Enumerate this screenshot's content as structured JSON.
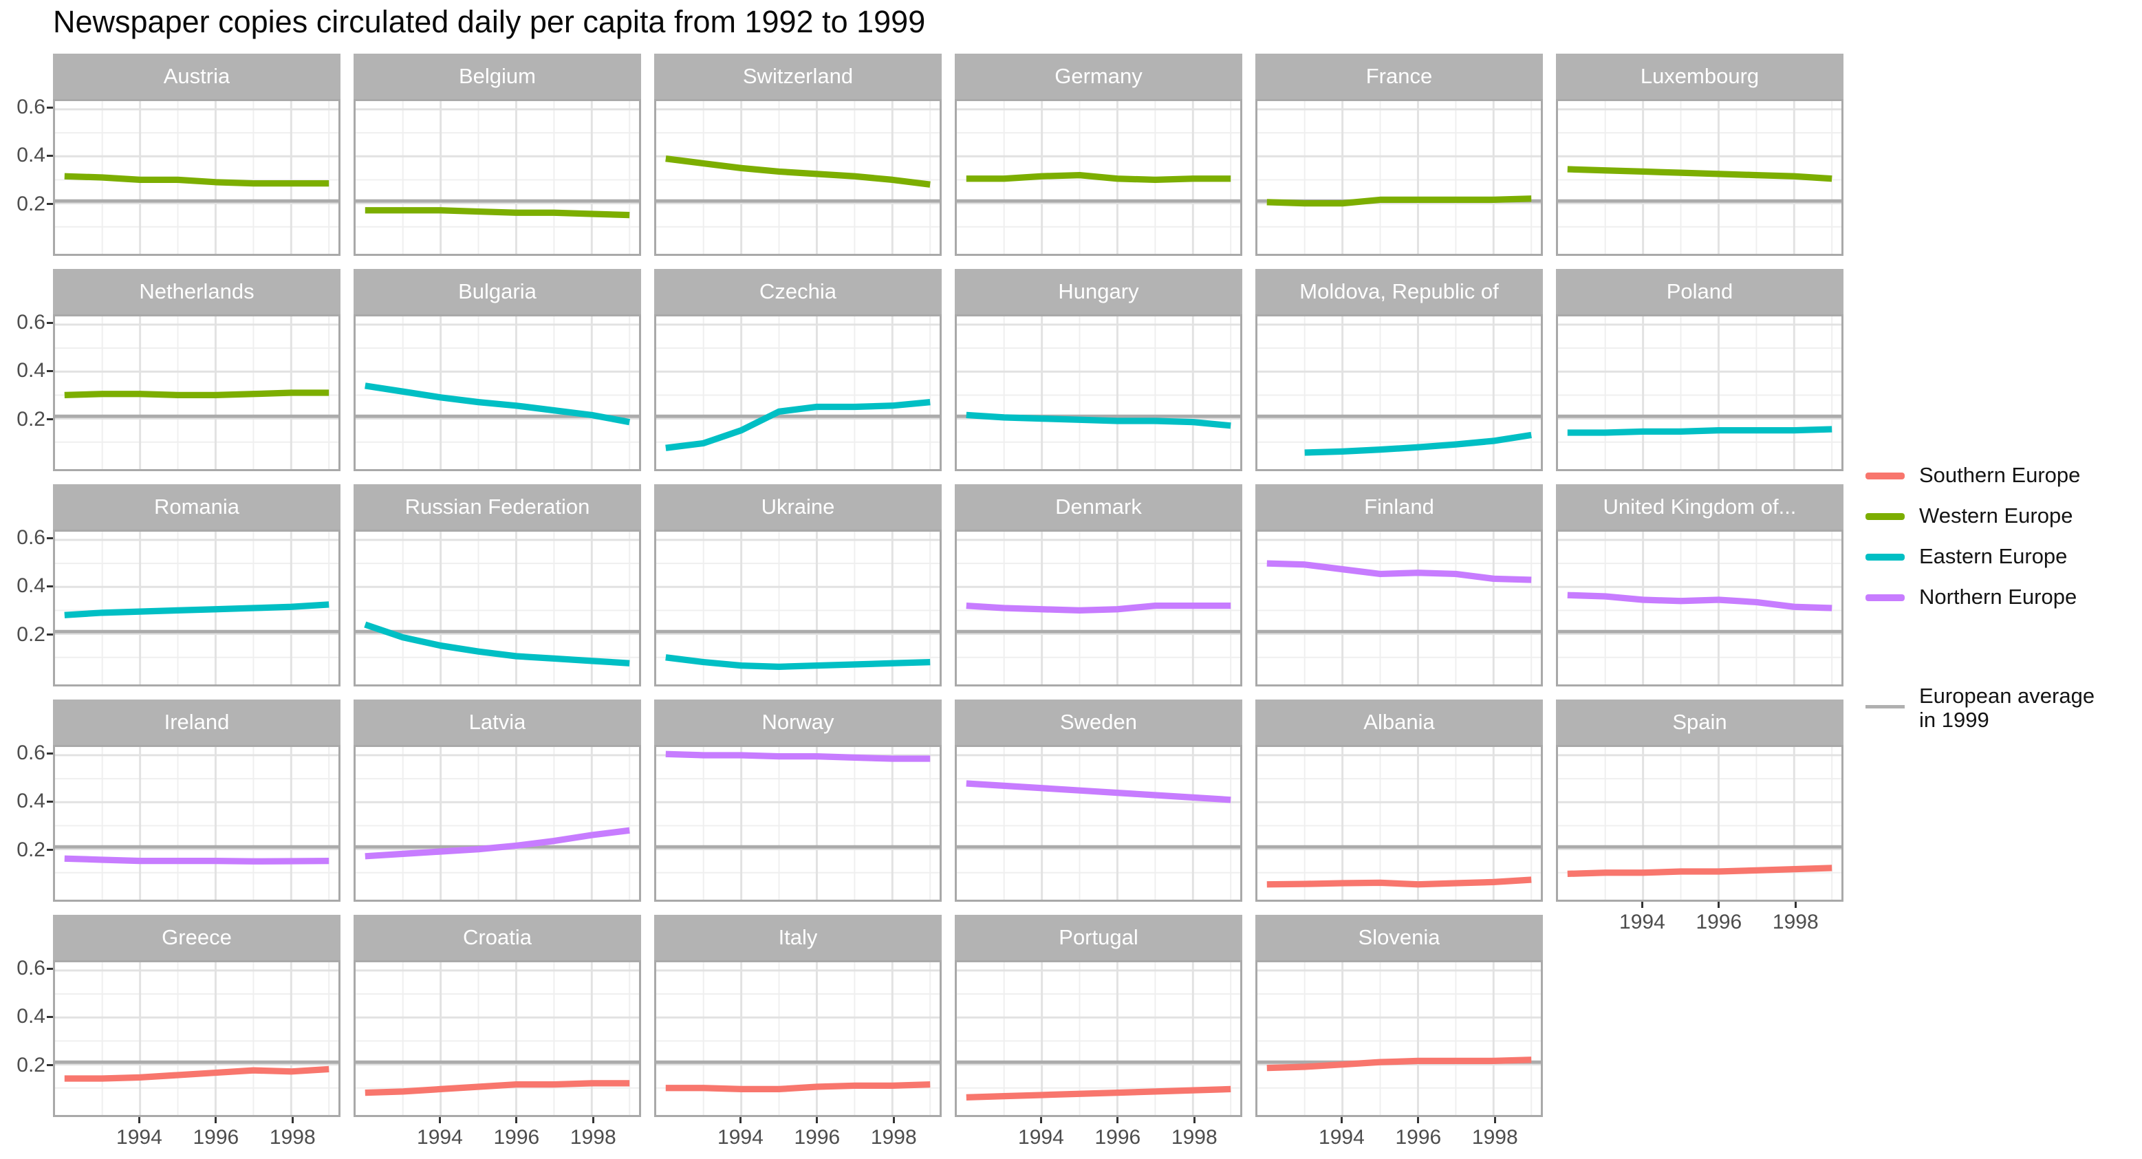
{
  "title": "Newspaper copies circulated daily per capita from 1992 to 1999",
  "legend": {
    "items": [
      {
        "label": "Southern Europe",
        "color": "#F8766D"
      },
      {
        "label": "Western Europe",
        "color": "#7CAE00"
      },
      {
        "label": "Eastern Europe",
        "color": "#00BFC4"
      },
      {
        "label": "Northern Europe",
        "color": "#C77CFF"
      }
    ],
    "reference_item": {
      "label_line1": "European average",
      "label_line2": " in 1999",
      "color": "#B0B0B0"
    }
  },
  "chart_data": {
    "type": "line",
    "title": "Newspaper copies circulated daily per capita from 1992 to 1999",
    "x": {
      "domain": [
        1992,
        1999
      ],
      "major_ticks": [
        1994,
        1996,
        1998
      ],
      "tick_labels": [
        "1994",
        "1996",
        "1998"
      ],
      "minor_ticks": [
        1993,
        1995,
        1997,
        1999
      ]
    },
    "y": {
      "domain": [
        -0.015,
        0.635
      ],
      "major_ticks": [
        0.2,
        0.4,
        0.6
      ],
      "tick_labels": [
        "0.2",
        "0.4",
        "0.6"
      ],
      "minor_ticks": [
        0.1,
        0.3,
        0.5
      ]
    },
    "grid": {
      "rows": 5,
      "cols": 6,
      "gridlines": "on",
      "legend_position": "right"
    },
    "reference_line": {
      "label": "European average in 1999",
      "value": 0.21,
      "color": "#ABABAB"
    },
    "regions": {
      "Southern Europe": "#F8766D",
      "Western Europe": "#7CAE00",
      "Eastern Europe": "#00BFC4",
      "Northern Europe": "#C77CFF"
    },
    "facets": [
      {
        "country": "Austria",
        "region": "Western Europe",
        "start_year": 1992,
        "values": [
          0.315,
          0.31,
          0.3,
          0.3,
          0.29,
          0.285,
          0.285,
          0.285
        ]
      },
      {
        "country": "Belgium",
        "region": "Western Europe",
        "start_year": 1992,
        "values": [
          0.17,
          0.17,
          0.17,
          0.165,
          0.16,
          0.16,
          0.155,
          0.15
        ]
      },
      {
        "country": "Switzerland",
        "region": "Western Europe",
        "start_year": 1992,
        "values": [
          0.39,
          0.37,
          0.35,
          0.335,
          0.325,
          0.315,
          0.3,
          0.28
        ]
      },
      {
        "country": "Germany",
        "region": "Western Europe",
        "start_year": 1992,
        "values": [
          0.305,
          0.305,
          0.315,
          0.32,
          0.305,
          0.3,
          0.305,
          0.305
        ]
      },
      {
        "country": "France",
        "region": "Western Europe",
        "start_year": 1992,
        "values": [
          0.205,
          0.2,
          0.2,
          0.215,
          0.215,
          0.215,
          0.215,
          0.22
        ]
      },
      {
        "country": "Luxembourg",
        "region": "Western Europe",
        "start_year": 1992,
        "values": [
          0.345,
          0.34,
          0.335,
          0.33,
          0.325,
          0.32,
          0.315,
          0.305
        ]
      },
      {
        "country": "Netherlands",
        "region": "Western Europe",
        "start_year": 1992,
        "values": [
          0.3,
          0.305,
          0.305,
          0.3,
          0.3,
          0.305,
          0.31,
          0.31
        ]
      },
      {
        "country": "Bulgaria",
        "region": "Eastern Europe",
        "start_year": 1992,
        "values": [
          0.34,
          0.315,
          0.29,
          0.27,
          0.255,
          0.235,
          0.215,
          0.185
        ]
      },
      {
        "country": "Czechia",
        "region": "Eastern Europe",
        "start_year": 1992,
        "values": [
          0.075,
          0.095,
          0.15,
          0.23,
          0.25,
          0.25,
          0.255,
          0.27
        ]
      },
      {
        "country": "Hungary",
        "region": "Eastern Europe",
        "start_year": 1992,
        "values": [
          0.215,
          0.205,
          0.2,
          0.195,
          0.19,
          0.19,
          0.185,
          0.17
        ]
      },
      {
        "country": "Moldova, Republic of",
        "region": "Eastern Europe",
        "start_year": 1993,
        "values": [
          0.055,
          0.06,
          0.068,
          0.078,
          0.09,
          0.105,
          0.13
        ]
      },
      {
        "country": "Poland",
        "region": "Eastern Europe",
        "start_year": 1992,
        "values": [
          0.14,
          0.14,
          0.145,
          0.145,
          0.15,
          0.15,
          0.15,
          0.155
        ]
      },
      {
        "country": "Romania",
        "region": "Eastern Europe",
        "start_year": 1992,
        "values": [
          0.28,
          0.29,
          0.295,
          0.3,
          0.305,
          0.31,
          0.315,
          0.325
        ]
      },
      {
        "country": "Russian Federation",
        "region": "Eastern Europe",
        "start_year": 1992,
        "values": [
          0.24,
          0.185,
          0.15,
          0.125,
          0.105,
          0.095,
          0.085,
          0.075
        ]
      },
      {
        "country": "Ukraine",
        "region": "Eastern Europe",
        "start_year": 1992,
        "values": [
          0.1,
          0.08,
          0.065,
          0.06,
          0.065,
          0.07,
          0.075,
          0.08
        ]
      },
      {
        "country": "Denmark",
        "region": "Northern Europe",
        "start_year": 1992,
        "values": [
          0.32,
          0.31,
          0.305,
          0.3,
          0.305,
          0.32,
          0.32,
          0.32
        ]
      },
      {
        "country": "Finland",
        "region": "Northern Europe",
        "start_year": 1992,
        "values": [
          0.5,
          0.495,
          0.475,
          0.455,
          0.46,
          0.455,
          0.435,
          0.43
        ]
      },
      {
        "country": "United Kingdom of...",
        "region": "Northern Europe",
        "start_year": 1992,
        "values": [
          0.365,
          0.36,
          0.345,
          0.34,
          0.345,
          0.335,
          0.315,
          0.31
        ]
      },
      {
        "country": "Ireland",
        "region": "Northern Europe",
        "start_year": 1992,
        "values": [
          0.16,
          0.155,
          0.15,
          0.15,
          0.15,
          0.148,
          0.149,
          0.15
        ]
      },
      {
        "country": "Latvia",
        "region": "Northern Europe",
        "start_year": 1992,
        "values": [
          0.17,
          0.18,
          0.19,
          0.2,
          0.215,
          0.235,
          0.26,
          0.28
        ]
      },
      {
        "country": "Norway",
        "region": "Northern Europe",
        "start_year": 1992,
        "values": [
          0.605,
          0.6,
          0.6,
          0.595,
          0.595,
          0.59,
          0.585,
          0.585
        ]
      },
      {
        "country": "Sweden",
        "region": "Northern Europe",
        "start_year": 1992,
        "values": [
          0.48,
          0.47,
          0.46,
          0.45,
          0.44,
          0.43,
          0.42,
          0.41
        ]
      },
      {
        "country": "Albania",
        "region": "Southern Europe",
        "start_year": 1992,
        "values": [
          0.05,
          0.052,
          0.055,
          0.057,
          0.05,
          0.055,
          0.06,
          0.07
        ]
      },
      {
        "country": "Spain",
        "region": "Southern Europe",
        "start_year": 1992,
        "values": [
          0.095,
          0.1,
          0.1,
          0.105,
          0.105,
          0.11,
          0.115,
          0.12
        ]
      },
      {
        "country": "Greece",
        "region": "Southern Europe",
        "start_year": 1992,
        "values": [
          0.14,
          0.14,
          0.145,
          0.155,
          0.165,
          0.175,
          0.17,
          0.18
        ]
      },
      {
        "country": "Croatia",
        "region": "Southern Europe",
        "start_year": 1992,
        "values": [
          0.08,
          0.085,
          0.095,
          0.105,
          0.115,
          0.115,
          0.12,
          0.12
        ]
      },
      {
        "country": "Italy",
        "region": "Southern Europe",
        "start_year": 1992,
        "values": [
          0.1,
          0.1,
          0.095,
          0.095,
          0.105,
          0.11,
          0.11,
          0.115
        ]
      },
      {
        "country": "Portugal",
        "region": "Southern Europe",
        "start_year": 1992,
        "values": [
          0.06,
          0.065,
          0.07,
          0.075,
          0.08,
          0.085,
          0.09,
          0.095
        ]
      },
      {
        "country": "Slovenia",
        "region": "Southern Europe",
        "start_year": 1992,
        "values": [
          0.185,
          0.19,
          0.2,
          0.21,
          0.215,
          0.215,
          0.215,
          0.22
        ]
      }
    ]
  }
}
